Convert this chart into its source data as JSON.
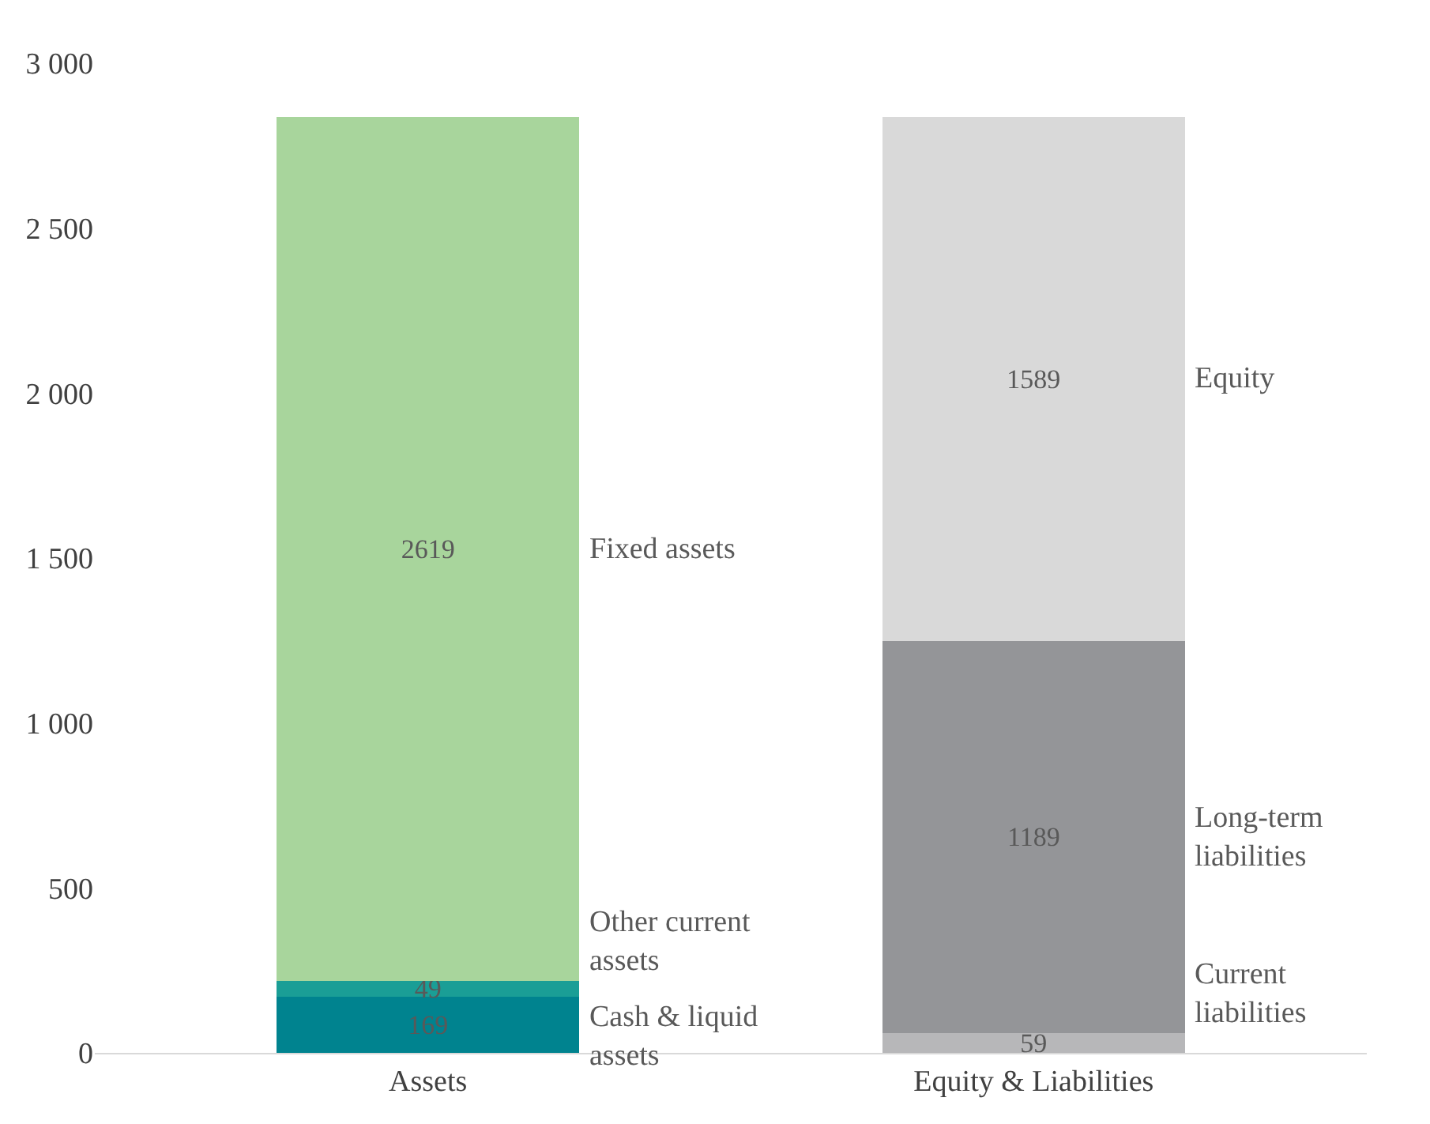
{
  "chart_data": {
    "type": "bar",
    "stacked": true,
    "categories": [
      "Assets",
      "Equity & Liabilities"
    ],
    "series": [
      {
        "name": "Cash & liquid assets",
        "color": "#00838f",
        "values": [
          169,
          null
        ]
      },
      {
        "name": "Other current assets",
        "color": "#1a9e96",
        "values": [
          49,
          null
        ]
      },
      {
        "name": "Fixed assets",
        "color": "#a8d59c",
        "values": [
          2619,
          null
        ]
      },
      {
        "name": "Current liabilities",
        "color": "#b7b7b9",
        "values": [
          null,
          59
        ]
      },
      {
        "name": "Long-term liabilities",
        "color": "#949598",
        "values": [
          null,
          1189
        ]
      },
      {
        "name": "Equity",
        "color": "#d9d9d9",
        "values": [
          null,
          1589
        ]
      }
    ],
    "ylim": [
      0,
      3000
    ],
    "yticks": [
      0,
      {
        "value": 500,
        "label": "500"
      },
      {
        "value": 1000,
        "label": "1 000"
      },
      {
        "value": 1500,
        "label": "1 500"
      },
      {
        "value": 2000,
        "label": "2 000"
      },
      {
        "value": 2500,
        "label": "2 500"
      },
      {
        "value": 3000,
        "label": "3 000"
      }
    ],
    "data_labels": true
  }
}
